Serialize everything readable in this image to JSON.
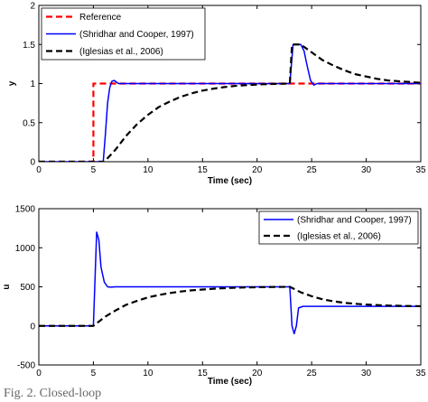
{
  "chart_data": [
    {
      "type": "line",
      "title": "",
      "xlabel": "Time (sec)",
      "ylabel": "y",
      "xlim": [
        0,
        35
      ],
      "ylim": [
        0,
        2
      ],
      "xticks": [
        0,
        5,
        10,
        15,
        20,
        25,
        30,
        35
      ],
      "yticks": [
        0,
        0.5,
        1,
        1.5,
        2
      ],
      "grid": false,
      "legend_position": "top-left",
      "series": [
        {
          "name": "Reference",
          "color": "#ff0000",
          "dash": "dashed",
          "x": [
            0,
            5,
            5,
            23,
            23,
            35
          ],
          "y": [
            0,
            0,
            1,
            1,
            1,
            1
          ]
        },
        {
          "name": "(Shridhar and Cooper, 1997)",
          "color": "#0000ff",
          "dash": "solid",
          "x": [
            0,
            5.9,
            6.1,
            6.3,
            6.5,
            6.7,
            6.9,
            7.1,
            7.3,
            7.6,
            8,
            23,
            23.3,
            23.5,
            24,
            24.3,
            24.6,
            24.9,
            25.2,
            25.5,
            26,
            35
          ],
          "y": [
            0,
            0,
            0.35,
            0.75,
            0.95,
            1.03,
            1.04,
            1.02,
            1.0,
            1.0,
            1.0,
            1.0,
            1.5,
            1.5,
            1.5,
            1.42,
            1.22,
            1.04,
            0.98,
            1.0,
            1.0,
            1.0
          ]
        },
        {
          "name": "(Iglesias et al., 2006)",
          "color": "#000000",
          "dash": "dashed",
          "x": [
            0,
            6,
            7,
            8,
            9,
            10,
            11,
            12,
            13,
            14,
            15,
            16,
            17,
            18,
            19,
            20,
            21,
            22,
            23,
            23.2,
            24,
            25,
            26,
            27,
            28,
            29,
            30,
            31,
            32,
            33,
            34,
            35
          ],
          "y": [
            0,
            0,
            0.15,
            0.33,
            0.48,
            0.6,
            0.7,
            0.77,
            0.83,
            0.875,
            0.91,
            0.935,
            0.955,
            0.97,
            0.98,
            0.987,
            0.993,
            0.997,
            1.0,
            1.5,
            1.5,
            1.4,
            1.3,
            1.23,
            1.17,
            1.12,
            1.09,
            1.06,
            1.04,
            1.03,
            1.02,
            1.01
          ]
        }
      ]
    },
    {
      "type": "line",
      "title": "",
      "xlabel": "Time (sec)",
      "ylabel": "u",
      "xlim": [
        0,
        35
      ],
      "ylim": [
        -500,
        1500
      ],
      "xticks": [
        0,
        5,
        10,
        15,
        20,
        25,
        30,
        35
      ],
      "yticks": [
        -500,
        0,
        500,
        1000,
        1500
      ],
      "grid": false,
      "legend_position": "top-right",
      "series": [
        {
          "name": "(Shridhar and Cooper, 1997)",
          "color": "#0000ff",
          "dash": "solid",
          "x": [
            0,
            5,
            5.3,
            5.5,
            5.7,
            6,
            6.3,
            6.6,
            7,
            23,
            23.2,
            23.4,
            23.6,
            23.8,
            24.2,
            35
          ],
          "y": [
            0,
            0,
            1200,
            1100,
            750,
            560,
            500,
            495,
            500,
            500,
            0,
            -100,
            0,
            230,
            250,
            250
          ]
        },
        {
          "name": "(Iglesias et al., 2006)",
          "color": "#000000",
          "dash": "dashed",
          "x": [
            0,
            5,
            6,
            7,
            8,
            9,
            10,
            11,
            12,
            13,
            14,
            15,
            16,
            17,
            18,
            19,
            20,
            21,
            22,
            23,
            24,
            25,
            26,
            27,
            28,
            29,
            30,
            31,
            32,
            33,
            34,
            35
          ],
          "y": [
            0,
            0,
            110,
            195,
            270,
            320,
            365,
            395,
            420,
            440,
            455,
            465,
            475,
            482,
            488,
            492,
            495,
            497,
            499,
            500,
            430,
            380,
            340,
            315,
            295,
            283,
            273,
            266,
            261,
            257,
            254,
            252
          ]
        }
      ]
    }
  ],
  "caption": "Fig. 2. Closed-loop"
}
